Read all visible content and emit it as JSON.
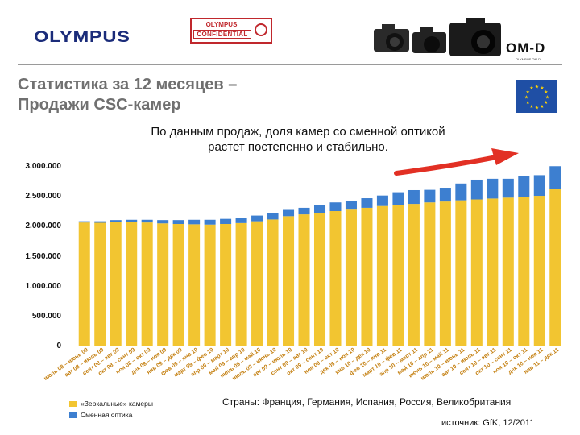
{
  "header": {
    "logo_text": "OLYMPUS",
    "stamp_line1": "OLYMPUS",
    "stamp_line2": "CONFIDENTIAL",
    "brand_text": "OM-D",
    "brand_subtext": "OLYMPUS OM-D"
  },
  "title_line1": "Статистика за 12 месяцев –",
  "title_line2": "Продажи CSC-камер",
  "subtitle_line1": "По данным продаж, доля камер со сменной оптикой",
  "subtitle_line2": "растет постепенно и стабильно.",
  "footer": {
    "countries": "Страны: Франция, Германия, Испания, Россия, Великобритания",
    "source": "источник: GfK, 12/2011"
  },
  "colors": {
    "dslr": "#f2c531",
    "csc": "#3d7fd0",
    "arrow": "#e23024",
    "eu_flag": "#1f4fa5",
    "eu_stars": "#ffd400"
  },
  "chart_data": {
    "type": "bar",
    "stacked": true,
    "ylim": [
      0,
      3000000
    ],
    "yticks": [
      0,
      500000,
      1000000,
      1500000,
      2000000,
      2500000,
      3000000
    ],
    "ytick_labels": [
      "0",
      "500.000",
      "1.000.000",
      "1.500.000",
      "2.000.000",
      "2.500.000",
      "3.000.000"
    ],
    "grid": false,
    "legend_position": "bottom-left",
    "categories": [
      "июль 08 – июнь 09",
      "авг 08 – июль 09",
      "сент 08 – авг 09",
      "окт 08 – сент 09",
      "ноя 08 – окт 09",
      "дек 08 – ноя 09",
      "янв 09 – дек 09",
      "фев 09 – янв 10",
      "март 09 – фев 10",
      "апр 09 – март 10",
      "май 09 – апр 10",
      "июнь 09 – май 10",
      "июль 09 – июнь 10",
      "авг 09 – июль 10",
      "сент 09 – авг 10",
      "окт 09 – сент 10",
      "ноя 09 – окт 10",
      "дек 09 – ноя 10",
      "янв 10 – дек 10",
      "фев 10 – янв 11",
      "март 10 – фев 11",
      "апр 10 – март 11",
      "май 10 – апр 11",
      "июнь 10 – май 11",
      "июль 10 – июнь 11",
      "авг 10 – июль 11",
      "сент 10 – авг 11",
      "окт 10 – сент 11",
      "ноя 10 – окт 11",
      "дек 10 – ноя 11",
      "янв 11 – дек 11"
    ],
    "series": [
      {
        "name": "«Зеркальные» камеры",
        "values": [
          2070000,
          2065000,
          2080000,
          2080000,
          2070000,
          2055000,
          2045000,
          2040000,
          2035000,
          2045000,
          2060000,
          2090000,
          2120000,
          2175000,
          2205000,
          2230000,
          2260000,
          2285000,
          2315000,
          2345000,
          2365000,
          2380000,
          2405000,
          2420000,
          2440000,
          2455000,
          2470000,
          2485000,
          2500000,
          2515000,
          2630000
        ]
      },
      {
        "name": "Сменная оптика",
        "values": [
          20000,
          25000,
          30000,
          35000,
          45000,
          55000,
          65000,
          75000,
          80000,
          85000,
          90000,
          95000,
          100000,
          105000,
          110000,
          135000,
          145000,
          150000,
          160000,
          175000,
          210000,
          230000,
          210000,
          230000,
          280000,
          330000,
          330000,
          315000,
          340000,
          345000,
          380000
        ]
      }
    ]
  }
}
